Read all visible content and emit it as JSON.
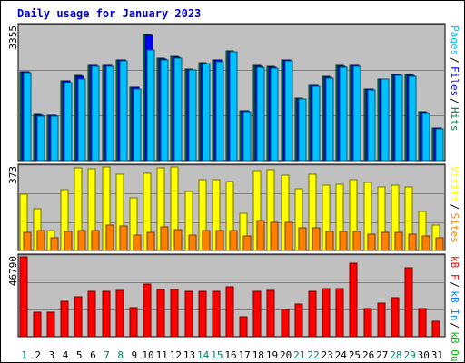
{
  "chart_data": {
    "type": "bar",
    "title": "Daily usage for January 2023",
    "categories": [
      "1",
      "2",
      "3",
      "4",
      "5",
      "6",
      "7",
      "8",
      "9",
      "10",
      "11",
      "12",
      "13",
      "14",
      "15",
      "16",
      "17",
      "18",
      "19",
      "20",
      "21",
      "22",
      "23",
      "24",
      "25",
      "26",
      "27",
      "28",
      "29",
      "30",
      "31"
    ],
    "weekend_days": [
      "1",
      "7",
      "8",
      "14",
      "15",
      "21",
      "22",
      "28",
      "29"
    ],
    "panels": [
      {
        "name": "hits",
        "max_label": "3355",
        "ylim": [
          0,
          3355
        ],
        "legend": [
          {
            "text": "Pages",
            "color": "#00c0ff"
          },
          {
            "text": "Files",
            "color": "#0000ff"
          },
          {
            "text": "Hits",
            "color": "#008040"
          }
        ],
        "series": [
          {
            "name": "Hits",
            "color": "#008040",
            "values": [
              2230,
              1150,
              1140,
              2000,
              2120,
              2390,
              2380,
              2520,
              1840,
              3140,
              2560,
              2600,
              2280,
              2440,
              2520,
              2740,
              1250,
              2370,
              2350,
              2520,
              1560,
              1890,
              2100,
              2370,
              2390,
              1800,
              2050,
              2160,
              2150,
              1220,
              820
            ]
          },
          {
            "name": "Files",
            "color": "#0000ff",
            "values": [
              2220,
              1140,
              1130,
              1990,
              2110,
              2380,
              2370,
              2510,
              1830,
              3130,
              2550,
              2590,
              2270,
              2430,
              2510,
              2730,
              1240,
              2360,
              2340,
              2510,
              1550,
              1880,
              2090,
              2360,
              2380,
              1790,
              2040,
              2150,
              2140,
              1210,
              810
            ]
          },
          {
            "name": "Pages",
            "color": "#00c0ff",
            "values": [
              2200,
              1110,
              1120,
              1960,
              2040,
              2360,
              2350,
              2490,
              1800,
              2760,
              2510,
              2560,
              2260,
              2430,
              2480,
              2730,
              1220,
              2340,
              2310,
              2490,
              1550,
              1860,
              2070,
              2330,
              2360,
              1760,
              2030,
              2140,
              2100,
              1190,
              790
            ]
          }
        ]
      },
      {
        "name": "visits",
        "max_label": "373",
        "ylim": [
          0,
          373
        ],
        "legend": [
          {
            "text": "Visits",
            "color": "#ffff00"
          },
          {
            "text": "Sites",
            "color": "#ff8000"
          }
        ],
        "series": [
          {
            "name": "Visits",
            "color": "#ffff00",
            "values": [
              250,
              185,
              90,
              270,
              370,
              365,
              375,
              340,
              235,
              345,
              370,
              375,
              265,
              315,
              315,
              310,
              165,
              355,
              360,
              335,
              275,
              340,
              290,
              295,
              315,
              305,
              285,
              290,
              285,
              175,
              115
            ]
          },
          {
            "name": "Sites",
            "color": "#ff8000",
            "values": [
              80,
              90,
              55,
              85,
              90,
              90,
              115,
              110,
              70,
              80,
              105,
              95,
              70,
              90,
              90,
              90,
              65,
              135,
              125,
              125,
              100,
              100,
              85,
              85,
              85,
              75,
              80,
              80,
              75,
              65,
              55
            ]
          }
        ]
      },
      {
        "name": "kbytes",
        "max_label": "46790",
        "ylim": [
          0,
          46790
        ],
        "legend": [
          {
            "text": "kB F",
            "color": "#ff0000"
          },
          {
            "text": "kB In",
            "color": "#0080ff"
          },
          {
            "text": "kB Out",
            "color": "#00c000"
          }
        ],
        "series": [
          {
            "name": "kB F",
            "color": "#ff0000",
            "values": [
              46790,
              14500,
              14500,
              21000,
              23500,
              26500,
              26500,
              27000,
              17000,
              31000,
              27500,
              27500,
              26500,
              26500,
              26500,
              29500,
              11500,
              26500,
              27000,
              16000,
              19000,
              26500,
              28000,
              28000,
              43000,
              16500,
              19500,
              23000,
              40500,
              16500,
              9000
            ]
          }
        ]
      }
    ]
  }
}
